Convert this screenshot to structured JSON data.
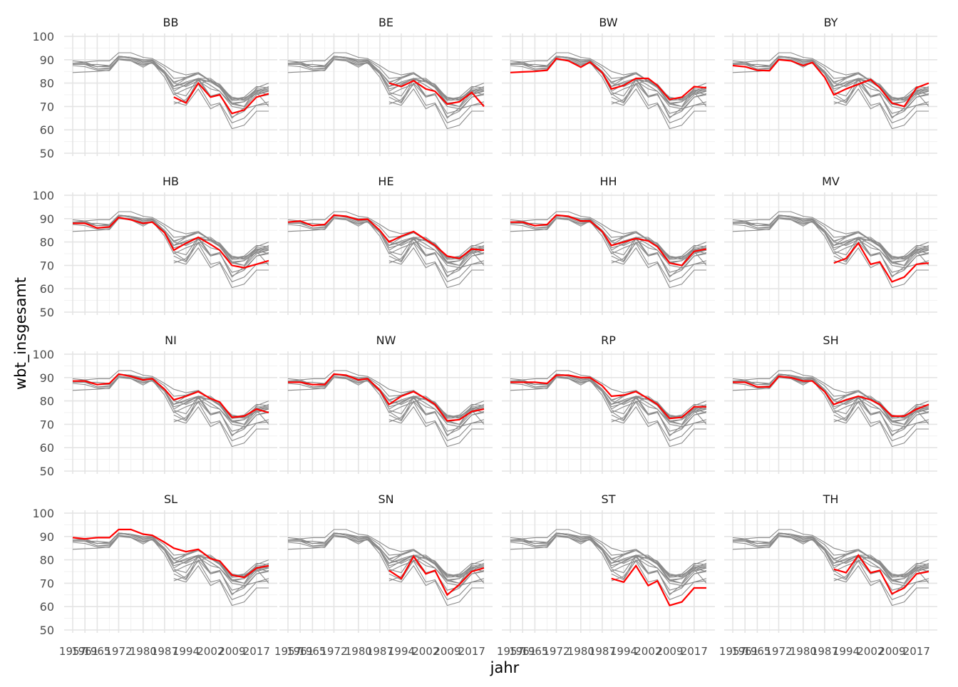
{
  "chart_data": {
    "type": "line",
    "layout": "facet-grid-4x4",
    "xlabel": "jahr",
    "ylabel": "wbt_insgesamt",
    "x": [
      1957,
      1961,
      1965,
      1969,
      1972,
      1976,
      1980,
      1983,
      1987,
      1990,
      1994,
      1998,
      2002,
      2005,
      2009,
      2013,
      2017,
      2021
    ],
    "x_ticks": [
      "1957",
      "1961",
      "1965",
      "1972",
      "1980",
      "1987",
      "1994",
      "2002",
      "2009",
      "2017"
    ],
    "y_ticks": [
      50,
      60,
      70,
      80,
      90,
      100
    ],
    "ylim": [
      50,
      100
    ],
    "highlight_color": "#ff0000",
    "background_color": "#8a8a8a",
    "grid": true,
    "legend": "none",
    "series": [
      {
        "name": "BB",
        "values": [
          null,
          null,
          null,
          null,
          null,
          null,
          null,
          null,
          null,
          74.0,
          71.5,
          80.0,
          74.0,
          75.0,
          67.0,
          68.5,
          74.0,
          75.5
        ]
      },
      {
        "name": "BE",
        "values": [
          null,
          null,
          null,
          null,
          null,
          null,
          null,
          null,
          null,
          80.0,
          78.5,
          81.0,
          77.5,
          76.5,
          71.0,
          72.0,
          76.0,
          70.0
        ]
      },
      {
        "name": "BW",
        "values": [
          84.5,
          84.8,
          85.0,
          85.5,
          90.5,
          89.5,
          86.8,
          89.0,
          84.5,
          77.5,
          79.0,
          82.0,
          82.0,
          79.0,
          73.0,
          74.0,
          78.5,
          78.0
        ]
      },
      {
        "name": "BY",
        "values": [
          87.5,
          87.0,
          85.5,
          85.3,
          90.0,
          89.5,
          87.5,
          88.8,
          82.5,
          75.0,
          77.5,
          79.5,
          81.5,
          78.0,
          71.5,
          70.0,
          78.0,
          80.0
        ]
      },
      {
        "name": "HB",
        "values": [
          88.0,
          88.0,
          86.0,
          86.5,
          90.5,
          89.5,
          88.0,
          88.5,
          84.0,
          76.5,
          79.5,
          82.0,
          79.0,
          76.5,
          70.0,
          69.0,
          70.5,
          72.0
        ]
      },
      {
        "name": "HE",
        "values": [
          88.5,
          89.0,
          87.0,
          87.5,
          91.5,
          91.0,
          89.5,
          89.8,
          85.0,
          80.0,
          82.5,
          84.5,
          81.0,
          78.5,
          74.0,
          73.0,
          77.0,
          76.5
        ]
      },
      {
        "name": "HH",
        "values": [
          88.5,
          88.5,
          87.0,
          87.5,
          91.5,
          91.0,
          89.0,
          89.0,
          84.5,
          78.5,
          80.0,
          81.5,
          80.5,
          78.0,
          71.0,
          70.0,
          76.0,
          77.0
        ]
      },
      {
        "name": "MV",
        "values": [
          null,
          null,
          null,
          null,
          null,
          null,
          null,
          null,
          null,
          71.0,
          73.0,
          79.5,
          70.5,
          71.5,
          63.0,
          65.0,
          70.5,
          71.0
        ]
      },
      {
        "name": "NI",
        "values": [
          88.5,
          88.5,
          87.0,
          87.5,
          91.5,
          90.5,
          89.0,
          89.5,
          85.0,
          80.5,
          82.0,
          84.0,
          81.0,
          79.5,
          73.0,
          73.5,
          76.5,
          75.0
        ]
      },
      {
        "name": "NW",
        "values": [
          88.0,
          88.0,
          87.0,
          87.0,
          91.5,
          91.0,
          89.0,
          89.5,
          84.5,
          78.5,
          82.0,
          84.0,
          81.0,
          78.5,
          71.5,
          72.0,
          75.5,
          76.5
        ]
      },
      {
        "name": "RP",
        "values": [
          88.0,
          88.0,
          88.0,
          87.5,
          91.0,
          91.0,
          90.0,
          90.0,
          86.5,
          82.0,
          82.5,
          84.0,
          81.0,
          78.5,
          72.5,
          73.0,
          77.5,
          77.5
        ]
      },
      {
        "name": "SH",
        "values": [
          88.0,
          88.0,
          86.0,
          86.0,
          90.5,
          90.0,
          88.5,
          88.5,
          84.0,
          78.5,
          80.5,
          82.0,
          80.5,
          78.5,
          73.5,
          73.5,
          76.5,
          78.5
        ]
      },
      {
        "name": "SL",
        "values": [
          89.5,
          89.0,
          89.5,
          89.5,
          93.0,
          93.0,
          91.0,
          90.5,
          87.5,
          85.0,
          83.5,
          84.5,
          80.5,
          79.5,
          73.5,
          72.5,
          76.5,
          77.5
        ]
      },
      {
        "name": "SN",
        "values": [
          null,
          null,
          null,
          null,
          null,
          null,
          null,
          null,
          null,
          75.5,
          72.0,
          81.5,
          74.0,
          75.5,
          65.0,
          69.5,
          75.0,
          76.5
        ]
      },
      {
        "name": "ST",
        "values": [
          null,
          null,
          null,
          null,
          null,
          null,
          null,
          null,
          null,
          72.0,
          70.5,
          77.5,
          69.0,
          71.0,
          60.5,
          62.0,
          68.0,
          68.0
        ]
      },
      {
        "name": "TH",
        "values": [
          null,
          null,
          null,
          null,
          null,
          null,
          null,
          null,
          null,
          76.0,
          74.5,
          82.0,
          74.5,
          75.5,
          65.5,
          68.0,
          74.0,
          75.0
        ]
      }
    ]
  }
}
